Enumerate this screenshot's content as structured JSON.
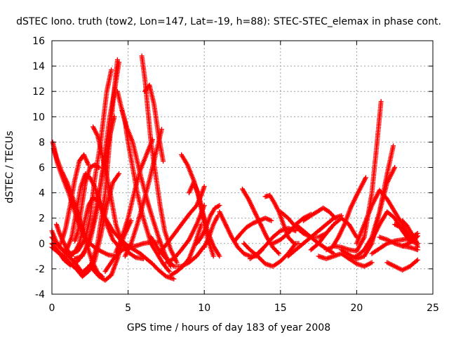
{
  "chart_data": {
    "type": "scatter",
    "title": "dSTEC Iono. truth (tow2, Lon=147, Lat=-19, h=88): STEC-STEC_elemax in phase cont.",
    "xlabel": "GPS time / hours of day 183 of year 2008",
    "ylabel": "dSTEC  / TECUs",
    "xlim": [
      0,
      25
    ],
    "ylim": [
      -4,
      16
    ],
    "xticks": [
      "0",
      "5",
      "10",
      "15",
      "20",
      "25"
    ],
    "yticks": [
      "-4",
      "-2",
      "0",
      "2",
      "4",
      "6",
      "8",
      "10",
      "12",
      "14",
      "16"
    ],
    "grid": true,
    "marker": "plus",
    "color": "#ff0000",
    "series": [
      {
        "x": [
          0.0,
          0.3,
          0.6,
          1.0,
          1.5,
          2.0,
          2.6,
          3.0,
          3.5,
          4.0,
          4.3
        ],
        "y": [
          1.0,
          0.1,
          -0.4,
          -0.9,
          -1.5,
          -2.3,
          -1.6,
          0.0,
          4.0,
          11.0,
          14.5
        ]
      },
      {
        "x": [
          0.0,
          0.3,
          0.7,
          1.2,
          1.7,
          2.2,
          2.5,
          2.8,
          3.2,
          3.6,
          3.9
        ],
        "y": [
          0.5,
          0.0,
          -0.5,
          -0.8,
          -0.6,
          0.4,
          2.0,
          5.0,
          8.0,
          12.0,
          13.7
        ]
      },
      {
        "x": [
          0.0,
          0.4,
          0.8,
          1.2,
          1.7,
          2.2,
          2.6,
          3.0,
          3.4,
          3.8,
          4.1
        ],
        "y": [
          0.0,
          -0.6,
          -1.3,
          -1.7,
          -1.4,
          -0.5,
          1.0,
          3.4,
          6.0,
          8.5,
          10.0
        ]
      },
      {
        "x": [
          0.0,
          0.4,
          0.8,
          1.2,
          1.6,
          2.0,
          2.4,
          2.8,
          3.2,
          3.6,
          4.0,
          4.4
        ],
        "y": [
          -0.3,
          -0.7,
          -1.0,
          -1.6,
          -2.0,
          -2.6,
          -2.2,
          -1.4,
          0.6,
          3.0,
          4.8,
          5.5
        ]
      },
      {
        "x": [
          0.05,
          0.3,
          0.6,
          1.0,
          1.4,
          1.8,
          2.2,
          2.6,
          3.0,
          3.3
        ],
        "y": [
          8.0,
          6.8,
          5.8,
          4.8,
          3.5,
          2.0,
          0.3,
          -1.3,
          -2.3,
          -2.6
        ]
      },
      {
        "x": [
          0.1,
          0.4,
          0.7,
          1.1,
          1.5,
          1.9,
          2.3,
          2.8,
          3.2,
          3.7,
          4.2
        ],
        "y": [
          7.5,
          6.2,
          5.2,
          4.0,
          2.5,
          1.2,
          0.2,
          -0.3,
          -0.6,
          -0.9,
          -1.0
        ]
      },
      {
        "x": [
          0.3,
          0.5,
          0.8,
          1.0,
          1.3
        ],
        "y": [
          1.5,
          0.8,
          0.0,
          -0.5,
          -1.0
        ]
      },
      {
        "x": [
          0.6,
          0.9,
          1.2,
          1.5,
          1.8,
          2.1,
          2.4
        ],
        "y": [
          0.0,
          1.2,
          3.0,
          5.0,
          6.5,
          7.0,
          6.2
        ]
      },
      {
        "x": [
          1.5,
          1.7,
          1.9,
          2.2,
          2.5,
          2.8,
          3.1
        ],
        "y": [
          0.2,
          0.9,
          2.5,
          4.8,
          6.0,
          6.2,
          6.0
        ]
      },
      {
        "x": [
          1.0,
          1.3,
          1.6,
          1.9,
          2.2,
          2.5,
          2.8,
          3.2,
          3.6,
          4.0,
          4.5
        ],
        "y": [
          -0.4,
          0.5,
          2.5,
          4.5,
          5.5,
          5.2,
          4.5,
          3.0,
          1.5,
          0.3,
          -0.4
        ]
      },
      {
        "x": [
          1.2,
          1.5,
          1.8,
          2.1,
          2.4,
          2.7,
          3.0
        ],
        "y": [
          -1.0,
          -0.7,
          0.0,
          1.5,
          3.0,
          3.6,
          3.4
        ]
      },
      {
        "x": [
          1.5,
          2.0,
          2.5,
          3.0,
          3.4,
          3.8,
          4.1,
          4.4
        ],
        "y": [
          -1.2,
          -1.0,
          0.2,
          2.8,
          6.5,
          10.0,
          12.0,
          14.3
        ]
      },
      {
        "x": [
          2.5,
          2.8,
          3.1,
          3.5,
          3.9,
          4.3,
          4.7,
          5.2
        ],
        "y": [
          -1.7,
          -2.2,
          -2.6,
          -2.9,
          -2.5,
          -1.2,
          0.5,
          1.8
        ]
      },
      {
        "x": [
          2.7,
          3.0,
          3.3,
          3.6,
          3.9,
          4.2,
          4.6,
          5.0,
          5.5,
          6.0
        ],
        "y": [
          9.2,
          8.5,
          7.0,
          5.3,
          3.5,
          1.5,
          0.0,
          -0.7,
          -1.1,
          -1.2
        ]
      },
      {
        "x": [
          3.0,
          3.5,
          4.0,
          4.5,
          5.0,
          5.4,
          5.8,
          6.2,
          6.6,
          7.0,
          7.5,
          8.0
        ],
        "y": [
          3.5,
          2.0,
          1.0,
          0.3,
          -0.2,
          -0.5,
          -0.8,
          -1.2,
          -1.6,
          -2.1,
          -2.6,
          -2.8
        ]
      },
      {
        "x": [
          3.5,
          4.0,
          4.5,
          5.0,
          5.5,
          6.0,
          6.5,
          7.0
        ],
        "y": [
          -2.2,
          -1.3,
          -0.6,
          -0.3,
          -0.2,
          0.0,
          0.1,
          0.1
        ]
      },
      {
        "x": [
          4.3,
          4.5,
          4.8,
          5.0,
          5.3,
          5.6,
          6.0,
          6.5,
          7.0,
          7.3,
          7.7
        ],
        "y": [
          12.0,
          11.0,
          9.6,
          8.0,
          6.0,
          4.0,
          2.0,
          0.0,
          -1.0,
          -1.6,
          -2.2
        ]
      },
      {
        "x": [
          4.6,
          4.9,
          5.3,
          5.6,
          5.9,
          6.3,
          6.6,
          7.0,
          7.4,
          7.8
        ],
        "y": [
          10.5,
          9.2,
          8.0,
          6.5,
          5.0,
          3.2,
          2.0,
          0.5,
          -0.8,
          -1.8
        ]
      },
      {
        "x": [
          4.2,
          4.6,
          5.0,
          5.4,
          5.8,
          6.2,
          6.6
        ],
        "y": [
          -0.7,
          0.5,
          2.0,
          4.0,
          5.8,
          7.0,
          8.2
        ]
      },
      {
        "x": [
          4.8,
          5.2,
          5.6,
          6.0,
          6.4,
          6.8,
          7.2
        ],
        "y": [
          -1.0,
          0.0,
          1.5,
          3.2,
          5.0,
          7.0,
          9.0
        ]
      },
      {
        "x": [
          5.9,
          6.1,
          6.3,
          6.5,
          6.8,
          7.1,
          7.4,
          7.8,
          8.2
        ],
        "y": [
          14.8,
          13.0,
          10.5,
          8.0,
          5.5,
          3.0,
          1.0,
          -0.5,
          -1.5
        ]
      },
      {
        "x": [
          6.1,
          6.4,
          6.7,
          7.0,
          7.3
        ],
        "y": [
          12.0,
          12.5,
          11.0,
          8.5,
          6.5
        ]
      },
      {
        "x": [
          6.5,
          7.0,
          7.5,
          8.0,
          8.5,
          9.0,
          9.5,
          10.0
        ],
        "y": [
          0.5,
          -0.5,
          -1.2,
          -1.8,
          -1.8,
          -1.5,
          -1.0,
          -0.2
        ]
      },
      {
        "x": [
          7.0,
          7.5,
          8.0,
          8.5,
          9.0,
          9.5,
          9.8,
          10.0
        ],
        "y": [
          -0.8,
          -0.1,
          0.7,
          1.5,
          2.3,
          3.0,
          3.8,
          4.5
        ]
      },
      {
        "x": [
          7.5,
          8.0,
          8.5,
          9.0,
          9.5,
          10.0
        ],
        "y": [
          -1.5,
          -1.2,
          -0.5,
          0.3,
          1.5,
          3.0
        ]
      },
      {
        "x": [
          7.8,
          8.2,
          8.6,
          9.0,
          9.4,
          9.8
        ],
        "y": [
          -2.5,
          -2.2,
          -1.8,
          -1.2,
          0.0,
          1.5
        ]
      },
      {
        "x": [
          8.5,
          8.9,
          9.3,
          9.6,
          9.9,
          10.2,
          10.6
        ],
        "y": [
          7.0,
          6.2,
          5.0,
          3.8,
          2.2,
          0.5,
          -1.0
        ]
      },
      {
        "x": [
          9.0,
          9.3,
          9.6,
          9.9,
          10.2,
          10.6,
          11.0
        ],
        "y": [
          4.0,
          4.8,
          4.0,
          2.5,
          1.0,
          -0.2,
          -1.0
        ]
      },
      {
        "x": [
          9.5,
          9.8,
          10.1,
          10.4,
          10.7,
          11.0
        ],
        "y": [
          0.0,
          0.5,
          1.2,
          2.2,
          2.8,
          3.0
        ]
      },
      {
        "x": [
          10.0,
          10.3,
          10.6,
          10.9
        ],
        "y": [
          -0.3,
          0.5,
          1.5,
          2.2
        ]
      },
      {
        "x": [
          11.0,
          11.4,
          11.8,
          12.2,
          12.6,
          13.0,
          13.4,
          13.8
        ],
        "y": [
          2.5,
          1.5,
          0.5,
          -0.3,
          -0.8,
          -1.0,
          -1.0,
          -0.5
        ]
      },
      {
        "x": [
          12.0,
          12.4,
          12.8,
          13.2,
          13.6,
          14.0,
          14.4
        ],
        "y": [
          0.2,
          0.8,
          1.3,
          1.6,
          1.8,
          2.0,
          1.8
        ]
      },
      {
        "x": [
          12.5,
          12.9,
          13.3,
          13.7,
          14.1,
          14.5,
          14.9
        ],
        "y": [
          4.3,
          3.5,
          2.5,
          1.5,
          0.5,
          -0.3,
          -0.8
        ]
      },
      {
        "x": [
          12.6,
          13.0,
          13.5,
          14.0,
          14.5,
          15.0,
          15.5,
          16.0
        ],
        "y": [
          0.0,
          -0.5,
          -1.0,
          -1.6,
          -1.8,
          -1.4,
          -0.8,
          0.0
        ]
      },
      {
        "x": [
          13.0,
          13.5,
          14.0,
          14.5,
          15.0,
          15.5,
          16.0
        ],
        "y": [
          -1.2,
          -0.8,
          -0.2,
          0.5,
          1.0,
          1.2,
          1.0
        ]
      },
      {
        "x": [
          14.0,
          14.3,
          14.6,
          14.9,
          15.2,
          15.5,
          15.9,
          16.2
        ],
        "y": [
          3.7,
          3.8,
          3.2,
          2.5,
          1.5,
          0.5,
          0.0,
          0.0
        ]
      },
      {
        "x": [
          14.5,
          15.0,
          15.5,
          16.0,
          16.5,
          17.0
        ],
        "y": [
          0.0,
          0.3,
          0.8,
          1.5,
          2.0,
          2.3
        ]
      },
      {
        "x": [
          15.0,
          15.5,
          16.0,
          16.5,
          17.0,
          17.5,
          18.0,
          18.5
        ],
        "y": [
          2.5,
          2.0,
          1.3,
          0.8,
          0.5,
          0.5,
          0.8,
          1.5
        ]
      },
      {
        "x": [
          15.5,
          16.0,
          16.5,
          17.0,
          17.5,
          18.0,
          18.5,
          19.0
        ],
        "y": [
          -1.0,
          -0.5,
          0.0,
          0.5,
          1.0,
          1.5,
          2.0,
          2.2
        ]
      },
      {
        "x": [
          16.0,
          16.5,
          17.0,
          17.5,
          18.0,
          18.5
        ],
        "y": [
          1.5,
          1.0,
          0.5,
          0.0,
          -0.4,
          -0.8
        ]
      },
      {
        "x": [
          16.5,
          17.0,
          17.4,
          17.8,
          18.2,
          18.6
        ],
        "y": [
          1.8,
          2.2,
          2.5,
          2.8,
          2.5,
          2.0
        ]
      },
      {
        "x": [
          17.0,
          17.5,
          18.0,
          18.5,
          19.0,
          19.5,
          20.0
        ],
        "y": [
          -0.5,
          0.0,
          0.8,
          1.5,
          2.0,
          1.5,
          0.5
        ]
      },
      {
        "x": [
          17.5,
          18.0,
          18.5,
          19.0,
          19.5,
          20.0,
          20.5,
          21.0
        ],
        "y": [
          -1.0,
          -1.2,
          -1.0,
          -0.8,
          -1.2,
          -1.6,
          -1.8,
          -1.5
        ]
      },
      {
        "x": [
          18.0,
          18.4,
          18.8,
          19.2,
          19.6,
          20.0,
          20.3,
          20.6
        ],
        "y": [
          -0.5,
          -0.3,
          0.5,
          1.5,
          2.8,
          3.8,
          4.5,
          5.2
        ]
      },
      {
        "x": [
          18.5,
          19.0,
          19.5,
          20.0,
          20.5,
          21.0,
          21.3,
          21.6
        ],
        "y": [
          -0.2,
          -0.3,
          -0.5,
          -0.6,
          0.5,
          4.0,
          7.5,
          11.2
        ]
      },
      {
        "x": [
          19.0,
          19.5,
          20.0,
          20.5,
          21.0,
          21.5,
          22.0,
          22.4
        ],
        "y": [
          -0.5,
          -0.9,
          -1.2,
          -1.0,
          0.0,
          2.5,
          5.5,
          7.7
        ]
      },
      {
        "x": [
          19.5,
          20.0,
          20.5,
          21.0,
          21.5,
          22.0,
          22.5
        ],
        "y": [
          -1.2,
          -1.0,
          -0.5,
          0.5,
          2.5,
          4.8,
          6.0
        ]
      },
      {
        "x": [
          20.0,
          20.5,
          21.0,
          21.5,
          22.0,
          22.5,
          23.0,
          23.5,
          24.0
        ],
        "y": [
          0.0,
          1.5,
          3.0,
          4.2,
          3.5,
          2.5,
          1.5,
          0.5,
          0.0
        ]
      },
      {
        "x": [
          20.5,
          21.0,
          21.5,
          22.0,
          22.5,
          23.0,
          23.5,
          24.0
        ],
        "y": [
          -0.5,
          0.3,
          1.5,
          2.5,
          2.0,
          1.0,
          0.2,
          0.0
        ]
      },
      {
        "x": [
          21.0,
          21.5,
          22.0,
          22.5,
          23.0,
          23.5,
          24.0
        ],
        "y": [
          -0.8,
          -0.4,
          0.0,
          0.2,
          0.3,
          0.4,
          0.8
        ]
      },
      {
        "x": [
          21.5,
          22.0,
          22.5,
          23.0,
          23.5,
          24.0
        ],
        "y": [
          0.5,
          0.3,
          0.0,
          -0.2,
          -0.3,
          -0.5
        ]
      },
      {
        "x": [
          22.0,
          22.5,
          23.0,
          23.5,
          24.0
        ],
        "y": [
          -1.5,
          -1.8,
          -2.1,
          -1.8,
          -1.3
        ]
      },
      {
        "x": [
          22.5,
          23.0,
          23.5,
          24.0
        ],
        "y": [
          1.5,
          1.2,
          0.6,
          0.0
        ]
      },
      {
        "x": [
          23.0,
          23.3,
          23.6,
          23.9,
          24.0
        ],
        "y": [
          1.8,
          1.4,
          0.8,
          0.2,
          -0.3
        ]
      },
      {
        "x": [
          23.0,
          23.4,
          23.8,
          24.0
        ],
        "y": [
          -0.2,
          0.0,
          0.3,
          0.6
        ]
      }
    ]
  }
}
